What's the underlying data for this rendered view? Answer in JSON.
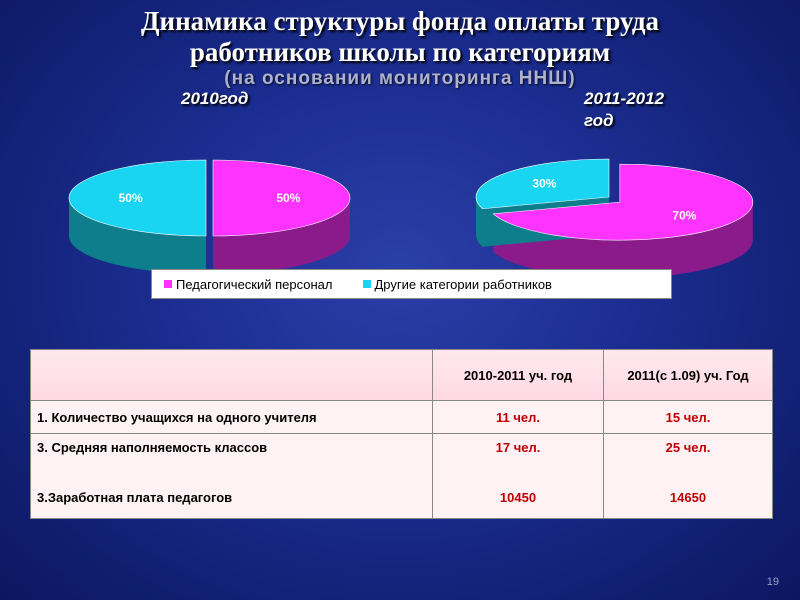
{
  "title_line1": "Динамика структуры фонда оплаты труда",
  "title_line2": "работников школы по категориям",
  "subtitle": "(на основании мониторинга ННШ)",
  "chart_data": {
    "type": "pie",
    "charts": [
      {
        "label": "2010год",
        "slices": [
          {
            "name": "Педагогический персонал",
            "value": 50,
            "label": "50%"
          },
          {
            "name": "Другие категории работников",
            "value": 50,
            "label": "50%"
          }
        ]
      },
      {
        "label_line1": "2011-2012",
        "label_line2": "год",
        "slices": [
          {
            "name": "Педагогический персонал",
            "value": 70,
            "label": "70%"
          },
          {
            "name": "Другие категории работников",
            "value": 30,
            "label": "30%"
          }
        ]
      }
    ],
    "legend": [
      "Педагогический персонал",
      "Другие категории работников"
    ],
    "legend_position": "bottom",
    "colors": {
      "teachers": "#ff33ff",
      "teachers_side": "#8b1a8b",
      "others": "#19d5f2",
      "others_side": "#0e7d8c"
    }
  },
  "table": {
    "header": [
      "",
      "2010-2011 уч. год",
      "2011(с 1.09) уч. Год"
    ],
    "rows": [
      {
        "label": "1. Количество учащихся на одного учителя",
        "v1": "11 чел.",
        "v2": "15 чел."
      },
      {
        "label": "3. Средняя наполняемость классов",
        "v1": "17 чел.",
        "v2": "25 чел."
      },
      {
        "label": "3.Заработная плата педагогов",
        "v1": "10450",
        "v2": "14650"
      }
    ]
  },
  "page_number": "19"
}
